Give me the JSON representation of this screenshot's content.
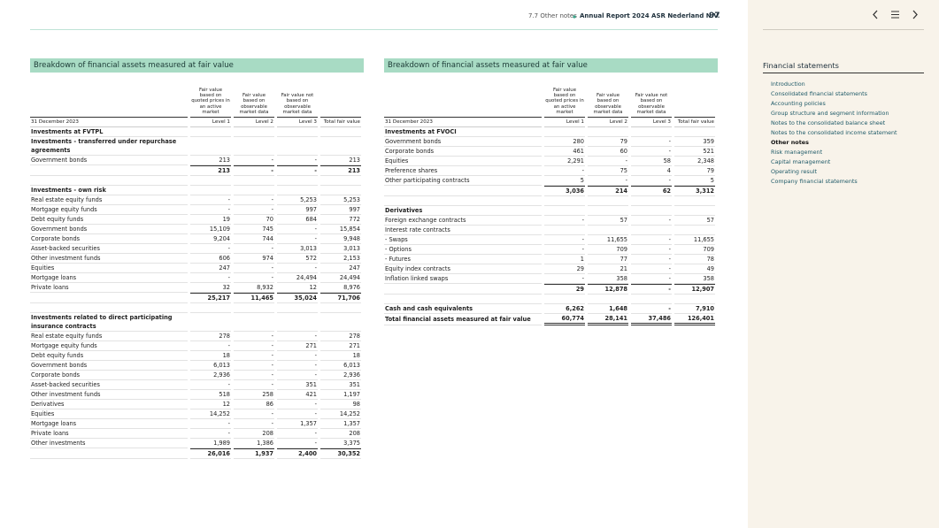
{
  "header": {
    "section": "7.7 Other notes",
    "report": "Annual Report 2024 ASR Nederland N.V.",
    "page": 97
  },
  "tables": [
    {
      "title": "Breakdown of financial assets measured at fair value",
      "column_headers": [
        "Fair value based on quoted prices in an active market",
        "Fair value based on observable market data",
        "Fair value not based on observable market data"
      ],
      "date": "31 December 2023",
      "levels": [
        "Level 1",
        "Level 2",
        "Level 3",
        "Total fair value"
      ],
      "rows": [
        {
          "label": "Investments at FVTPL"
        },
        {
          "label": "Investments - transferred under repurchase agreements"
        },
        {
          "label": "Government bonds",
          "values": [
            "213",
            "-",
            "-",
            "213"
          ]
        },
        {
          "values": [
            "213",
            "-",
            "-",
            "213"
          ]
        },
        {
          "label": "Investments - own risk"
        },
        {
          "label": "Real estate equity funds",
          "values": [
            "-",
            "-",
            "5,253",
            "5,253"
          ]
        },
        {
          "label": "Mortgage equity funds",
          "values": [
            "-",
            "-",
            "997",
            "997"
          ]
        },
        {
          "label": "Debt equity funds",
          "values": [
            "19",
            "70",
            "684",
            "772"
          ]
        },
        {
          "label": "Government bonds",
          "values": [
            "15,109",
            "745",
            "-",
            "15,854"
          ]
        },
        {
          "label": "Corporate bonds",
          "values": [
            "9,204",
            "744",
            "-",
            "9,948"
          ]
        },
        {
          "label": "Asset-backed securities",
          "values": [
            "-",
            "-",
            "3,013",
            "3,013"
          ]
        },
        {
          "label": "Other investment funds",
          "values": [
            "606",
            "974",
            "572",
            "2,153"
          ]
        },
        {
          "label": "Equities",
          "values": [
            "247",
            "-",
            "-",
            "247"
          ]
        },
        {
          "label": "Mortgage loans",
          "values": [
            "-",
            "-",
            "24,494",
            "24,494"
          ]
        },
        {
          "label": "Private loans",
          "values": [
            "32",
            "8,932",
            "12",
            "8,976"
          ]
        },
        {
          "values": [
            "25,217",
            "11,465",
            "35,024",
            "71,706"
          ]
        },
        {
          "label": "Investments related to direct participating insurance contracts"
        },
        {
          "label": "Real estate equity funds",
          "values": [
            "278",
            "-",
            "-",
            "278"
          ]
        },
        {
          "label": "Mortgage equity funds",
          "values": [
            "-",
            "-",
            "271",
            "271"
          ]
        },
        {
          "label": "Debt equity funds",
          "values": [
            "18",
            "-",
            "-",
            "18"
          ]
        },
        {
          "label": "Government bonds",
          "values": [
            "6,013",
            "-",
            "-",
            "6,013"
          ]
        },
        {
          "label": "Corporate bonds",
          "values": [
            "2,936",
            "-",
            "-",
            "2,936"
          ]
        },
        {
          "label": "Asset-backed securities",
          "values": [
            "-",
            "-",
            "351",
            "351"
          ]
        },
        {
          "label": "Other investment funds",
          "values": [
            "518",
            "258",
            "421",
            "1,197"
          ]
        },
        {
          "label": "Derivatives",
          "values": [
            "12",
            "86",
            "-",
            "98"
          ]
        },
        {
          "label": "Equities",
          "values": [
            "14,252",
            "-",
            "-",
            "14,252"
          ]
        },
        {
          "label": "Mortgage loans",
          "values": [
            "-",
            "-",
            "1,357",
            "1,357"
          ]
        },
        {
          "label": "Private loans",
          "values": [
            "-",
            "208",
            "-",
            "208"
          ]
        },
        {
          "label": "Other investments",
          "values": [
            "1,989",
            "1,386",
            "-",
            "3,375"
          ]
        },
        {
          "values": [
            "26,016",
            "1,937",
            "2,400",
            "30,352"
          ]
        }
      ]
    },
    {
      "title": "Breakdown of financial assets measured at fair value",
      "column_headers": [
        "Fair value based on quoted prices in an active market",
        "Fair value based on observable market data",
        "Fair value not based on observable market data"
      ],
      "date": "31 December 2023",
      "levels": [
        "Level 1",
        "Level 2",
        "Level 3",
        "Total fair value"
      ],
      "rows": [
        {
          "label": "Investments at FVOCI"
        },
        {
          "label": "Government bonds",
          "values": [
            "280",
            "79",
            "-",
            "359"
          ]
        },
        {
          "label": "Corporate bonds",
          "values": [
            "461",
            "60",
            "-",
            "521"
          ]
        },
        {
          "label": "Equities",
          "values": [
            "2,291",
            "-",
            "58",
            "2,348"
          ]
        },
        {
          "label": "Preference shares",
          "values": [
            "-",
            "75",
            "4",
            "79"
          ]
        },
        {
          "label": "Other participating contracts",
          "values": [
            "5",
            "-",
            "-",
            "5"
          ]
        },
        {
          "values": [
            "3,036",
            "214",
            "62",
            "3,312"
          ]
        },
        {
          "label": "Derivatives"
        },
        {
          "label": "Foreign exchange contracts",
          "values": [
            "-",
            "57",
            "-",
            "57"
          ]
        },
        {
          "label": "Interest rate contracts",
          "plain": true
        },
        {
          "label": "- Swaps",
          "values": [
            "-",
            "11,655",
            "-",
            "11,655"
          ]
        },
        {
          "label": "- Options",
          "values": [
            "-",
            "709",
            "-",
            "709"
          ]
        },
        {
          "label": "- Futures",
          "values": [
            "1",
            "77",
            "-",
            "78"
          ]
        },
        {
          "label": "Equity index contracts",
          "values": [
            "29",
            "21",
            "-",
            "49"
          ]
        },
        {
          "label": "Inflation linked swaps",
          "values": [
            "-",
            "358",
            "-",
            "358"
          ]
        },
        {
          "values": [
            "29",
            "12,878",
            "-",
            "12,907"
          ]
        },
        {
          "label": "Cash and cash equivalents",
          "bold": true,
          "values": [
            "6,262",
            "1,648",
            "-",
            "7,910"
          ]
        },
        {
          "label": "Total financial assets measured at fair value",
          "bold": true,
          "values": [
            "60,774",
            "28,141",
            "37,486",
            "126,401"
          ]
        }
      ]
    }
  ],
  "sidebar": {
    "title": "Financial statements",
    "items": [
      "Introduction",
      "Consolidated financial statements",
      "Accounting policies",
      "Group structure and segment information",
      "Notes to the consolidated balance sheet",
      "Notes to the consolidated income statement",
      "Other notes",
      "Risk management",
      "Capital management",
      "Operating result",
      "Company financial statements"
    ],
    "current": 6
  }
}
